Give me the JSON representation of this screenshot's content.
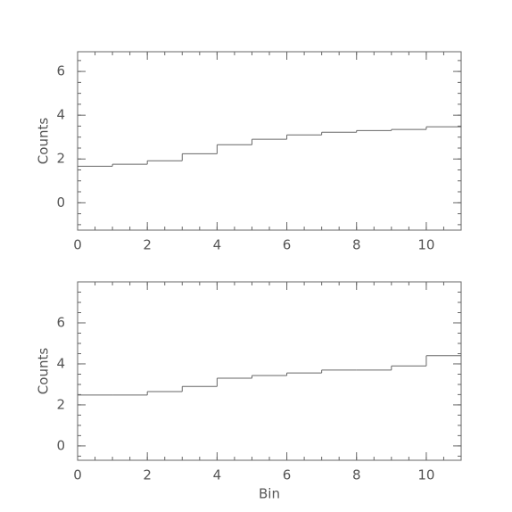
{
  "chart_data": [
    {
      "type": "histogram",
      "ylabel": "Counts",
      "bins": [
        0,
        1,
        2,
        3,
        4,
        5,
        6,
        7,
        8,
        9,
        10,
        11
      ],
      "values": [
        1.67,
        1.76,
        1.92,
        2.24,
        2.65,
        2.9,
        3.1,
        3.22,
        3.3,
        3.35,
        3.47
      ],
      "color": "#666666",
      "xlim": [
        0,
        11
      ],
      "xticks": [
        0,
        2,
        4,
        6,
        8,
        10
      ],
      "ylim": [
        -1.25,
        6.9
      ],
      "yticks": [
        0,
        2,
        4,
        6
      ]
    },
    {
      "type": "histogram",
      "ylabel": "Counts",
      "xlabel": "Bin",
      "bins": [
        0,
        1,
        2,
        3,
        4,
        5,
        6,
        7,
        8,
        9,
        10,
        11
      ],
      "values": [
        2.48,
        2.48,
        2.65,
        2.9,
        3.3,
        3.43,
        3.56,
        3.7,
        3.7,
        3.9,
        4.4
      ],
      "color": "#666666",
      "xlim": [
        0,
        11
      ],
      "xticks": [
        0,
        2,
        4,
        6,
        8,
        10
      ],
      "ylim": [
        -0.7,
        8
      ],
      "yticks": [
        0,
        2,
        4,
        6
      ]
    }
  ]
}
